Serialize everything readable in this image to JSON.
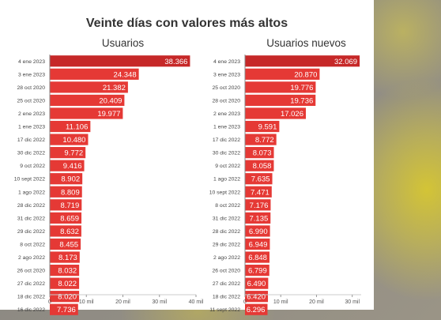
{
  "title": "Veinte días con valores más altos",
  "colors": {
    "bar": "#e53935",
    "bar_top": "#c62828",
    "axis": "#888888",
    "label": "#ffffff"
  },
  "chart_data": [
    {
      "type": "bar",
      "orientation": "horizontal",
      "subtitle": "Usuarios",
      "categories": [
        "4 ene 2023",
        "3 ene 2023",
        "28 oct 2020",
        "25 oct 2020",
        "2 ene 2023",
        "1 ene 2023",
        "17 dic 2022",
        "30 dic 2022",
        "9 oct 2022",
        "10 sept 2022",
        "1 ago 2022",
        "28 dic 2022",
        "31 dic 2022",
        "29 dic 2022",
        "8 oct 2022",
        "2 ago 2022",
        "26 oct 2020",
        "27 dic 2022",
        "18 dic 2022",
        "16 dic 2022"
      ],
      "values": [
        38366,
        24348,
        21382,
        20409,
        19977,
        11106,
        10480,
        9772,
        9416,
        8902,
        8809,
        8719,
        8659,
        8632,
        8455,
        8173,
        8032,
        8022,
        8020,
        7736
      ],
      "value_labels": [
        "38.366",
        "24.348",
        "21.382",
        "20.409",
        "19.977",
        "11.106",
        "10.480",
        "9.772",
        "9.416",
        "8.902",
        "8.809",
        "8.719",
        "8.659",
        "8.632",
        "8.455",
        "8.173",
        "8.032",
        "8.022",
        "8.020",
        "7.736"
      ],
      "xlim": [
        0,
        40000
      ],
      "ticks": [
        0,
        10000,
        20000,
        30000,
        40000
      ],
      "tick_labels": [
        "0",
        "10 mil",
        "20 mil",
        "30 mil",
        "40 mil"
      ]
    },
    {
      "type": "bar",
      "orientation": "horizontal",
      "subtitle": "Usuarios nuevos",
      "categories": [
        "4 ene 2023",
        "3 ene 2023",
        "25 oct 2020",
        "28 oct 2020",
        "2 ene 2023",
        "1 ene 2023",
        "17 dic 2022",
        "30 dic 2022",
        "9 oct 2022",
        "1 ago 2022",
        "10 sept 2022",
        "8 oct 2022",
        "31 dic 2022",
        "28 dic 2022",
        "29 dic 2022",
        "2 ago 2022",
        "26 oct 2020",
        "27 dic 2022",
        "18 dic 2022",
        "11 sept 2022"
      ],
      "values": [
        32069,
        20870,
        19776,
        19736,
        17026,
        9591,
        8772,
        8073,
        8058,
        7635,
        7471,
        7176,
        7135,
        6990,
        6949,
        6848,
        6799,
        6490,
        6420,
        6296
      ],
      "value_labels": [
        "32.069",
        "20.870",
        "19.776",
        "19.736",
        "17.026",
        "9.591",
        "8.772",
        "8.073",
        "8.058",
        "7.635",
        "7.471",
        "7.176",
        "7.135",
        "6.990",
        "6.949",
        "6.848",
        "6.799",
        "6.490",
        "6.420",
        "6.296"
      ],
      "xlim": [
        0,
        32500
      ],
      "ticks": [
        0,
        10000,
        20000,
        30000
      ],
      "tick_labels": [
        "0",
        "10 mil",
        "20 mil",
        "30 mil"
      ]
    }
  ]
}
